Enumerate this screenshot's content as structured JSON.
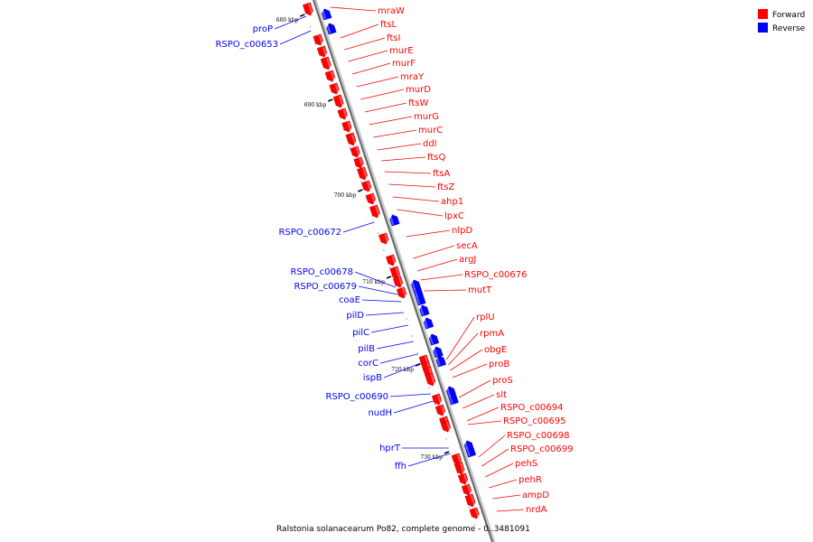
{
  "legend": {
    "forward": {
      "label": "Forward",
      "color": "#ff0000"
    },
    "reverse": {
      "label": "Reverse",
      "color": "#0000ff"
    }
  },
  "caption": "Ralstonia solanacearum Po82, complete genome - 0..3481091",
  "ticks": [
    {
      "label": "680 kbp",
      "kbp": 680
    },
    {
      "label": "690 kbp",
      "kbp": 690
    },
    {
      "label": "700 kbp",
      "kbp": 700
    },
    {
      "label": "710 kbp",
      "kbp": 710
    },
    {
      "label": "720 kbp",
      "kbp": 720
    },
    {
      "label": "730 kbp",
      "kbp": 730
    }
  ],
  "forward_genes": [
    "mraW",
    "ftsL",
    "ftsI",
    "murE",
    "murF",
    "mraY",
    "murD",
    "ftsW",
    "murG",
    "murC",
    "ddl",
    "ftsQ",
    "ftsA",
    "ftsZ",
    "ahp1",
    "lpxC",
    "nlpD",
    "secA",
    "argJ",
    "RSPO_c00676",
    "mutT",
    "rplU",
    "rpmA",
    "obgE",
    "proB",
    "proS",
    "slt",
    "RSPO_c00694",
    "RSPO_c00695",
    "RSPO_c00698",
    "RSPO_c00699",
    "pehS",
    "pehR",
    "ampD",
    "nrdA"
  ],
  "reverse_genes": [
    "proP",
    "RSPO_c00653",
    "RSPO_c00672",
    "RSPO_c00678",
    "RSPO_c00679",
    "coaE",
    "pilD",
    "pilC",
    "pilB",
    "corC",
    "ispB",
    "RSPO_c00690",
    "nudH",
    "hprT",
    "ffh"
  ]
}
